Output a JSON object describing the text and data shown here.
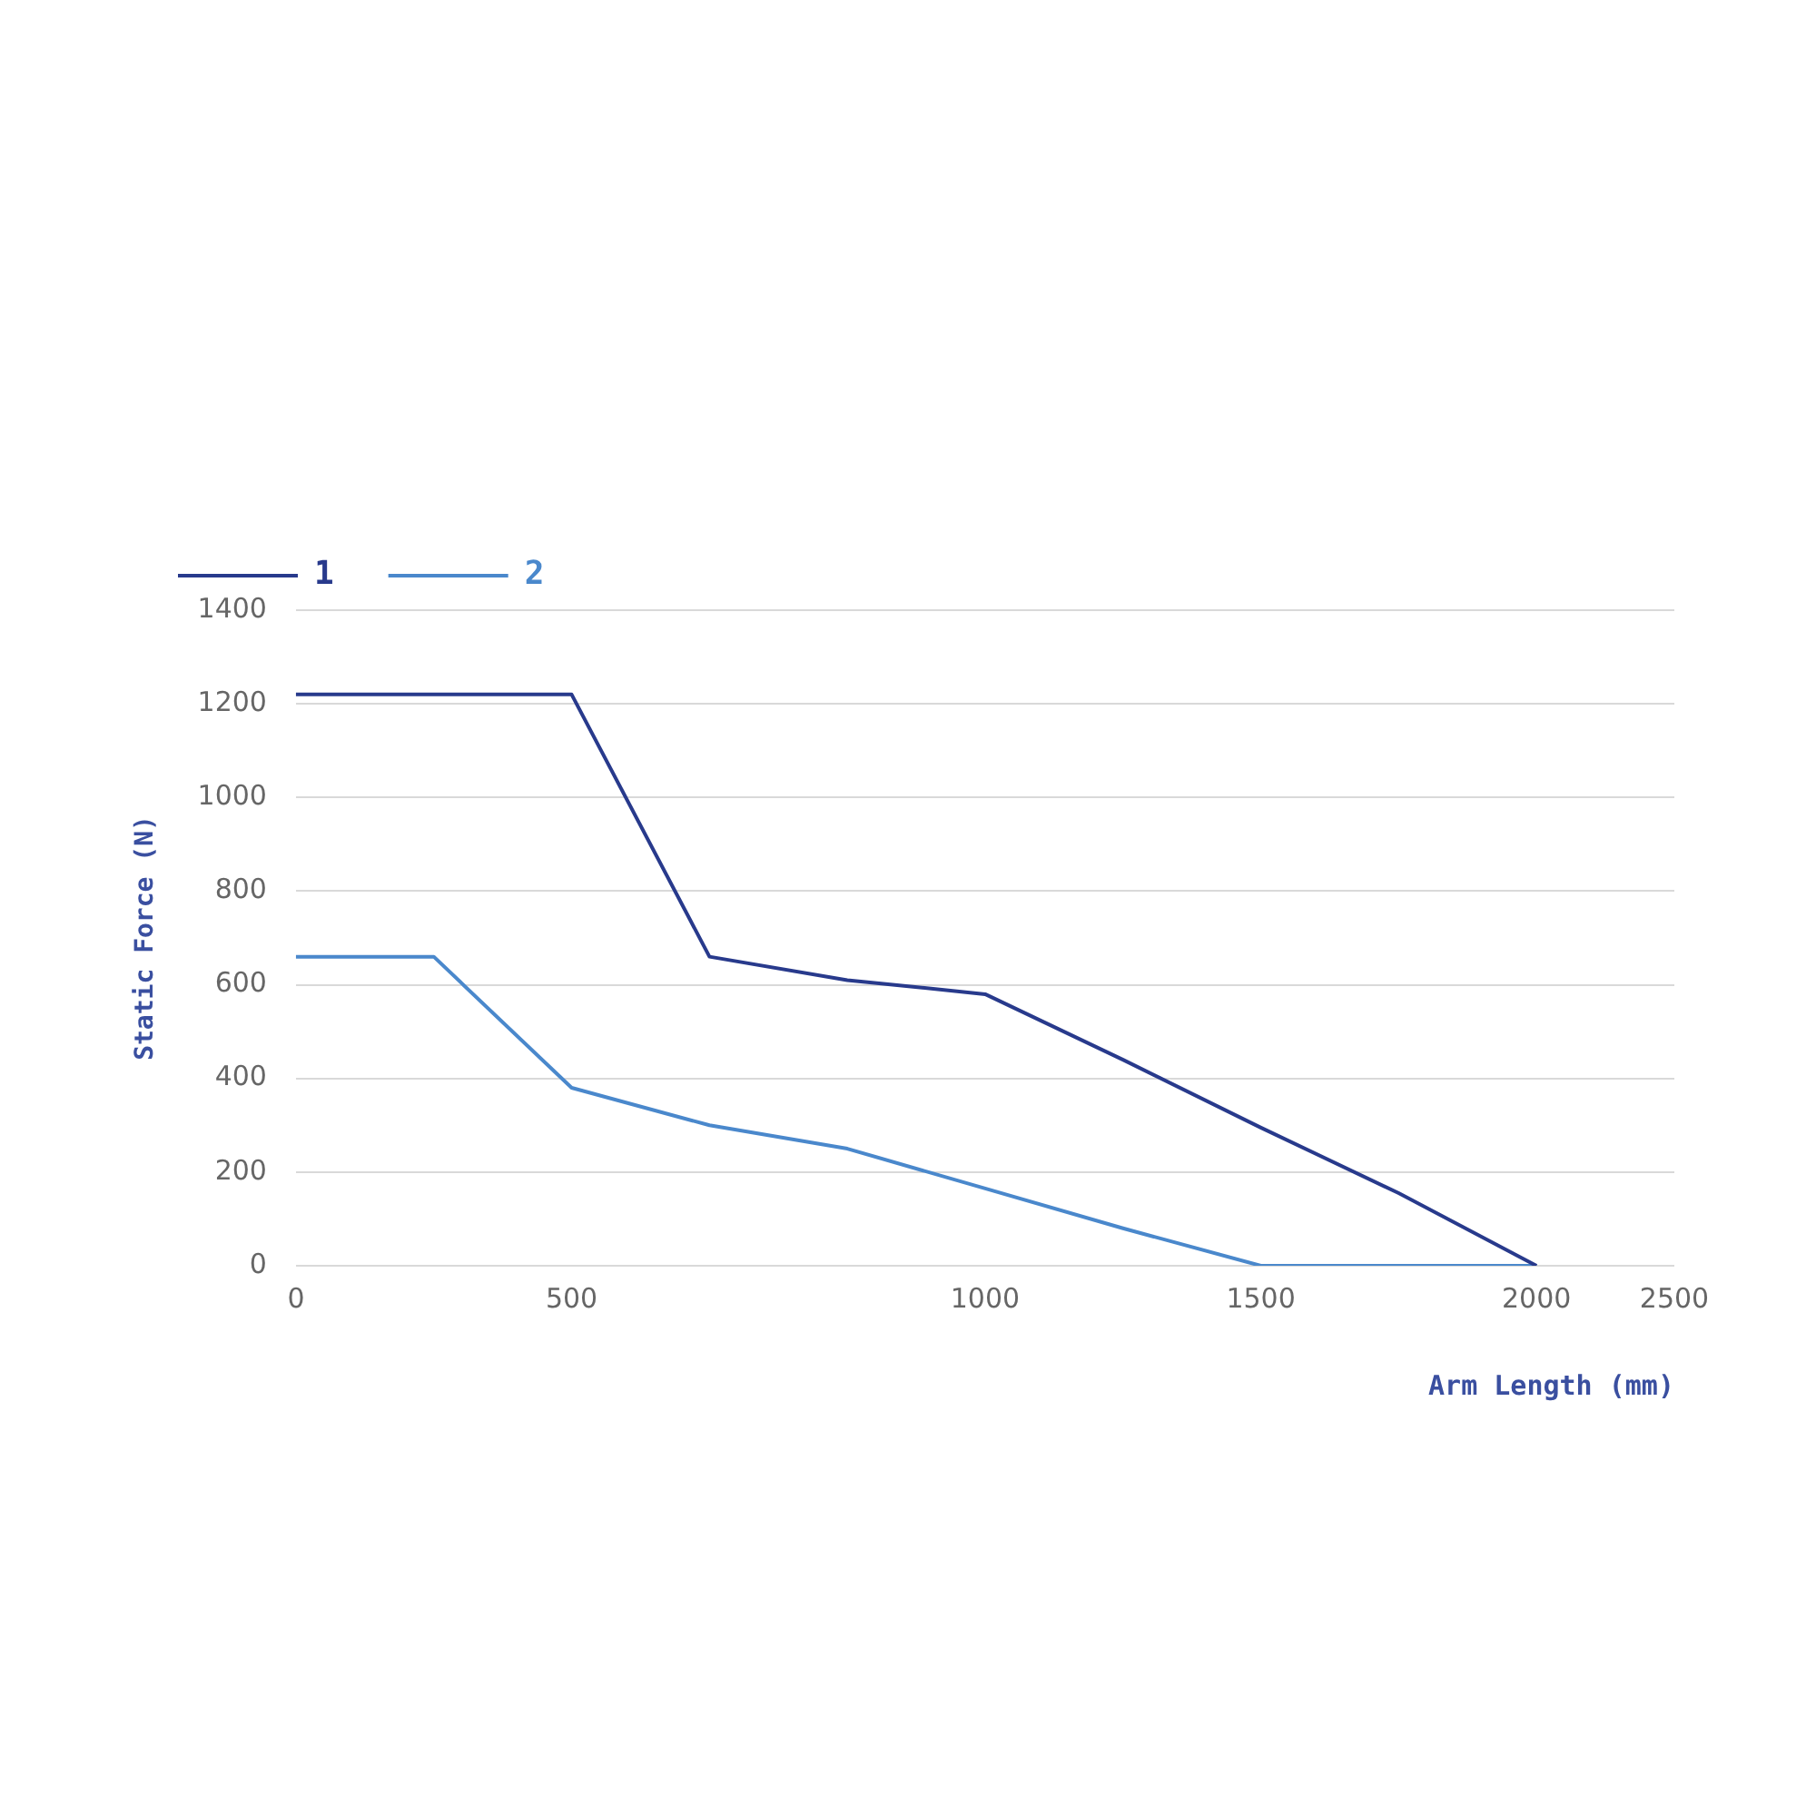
{
  "chart_data": {
    "type": "line",
    "xlabel": "Arm Length (mm)",
    "ylabel": "Static Force (N)",
    "categories": [
      "0",
      null,
      "500",
      null,
      null,
      "1000",
      null,
      "1500",
      null,
      "2000",
      "2500"
    ],
    "series": [
      {
        "name": "1",
        "color": "#283a8c",
        "values": [
          1220,
          1220,
          1220,
          660,
          610,
          580,
          440,
          295,
          155,
          0,
          null
        ]
      },
      {
        "name": "2",
        "color": "#4a88cc",
        "values": [
          660,
          660,
          380,
          300,
          250,
          165,
          80,
          0,
          0,
          0,
          null
        ]
      }
    ],
    "ylim": [
      0,
      1400
    ],
    "yticks": [
      0,
      200,
      400,
      600,
      800,
      1000,
      1200,
      1400
    ],
    "grid": "y",
    "legend": "top left",
    "marker": "none",
    "line_style": "solid"
  }
}
